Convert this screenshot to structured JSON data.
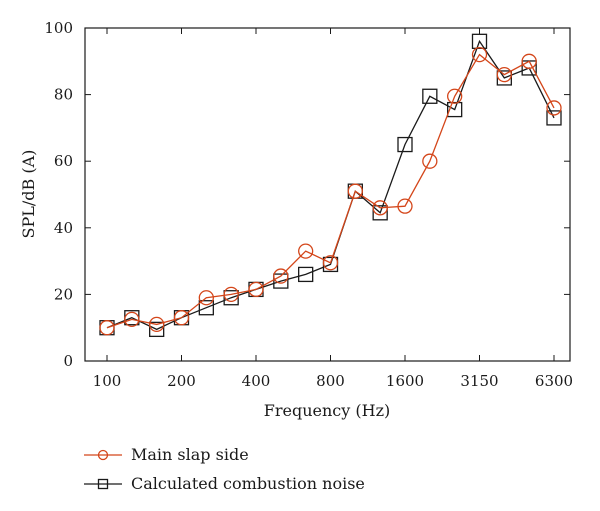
{
  "chart_data": {
    "type": "line",
    "xlabel": "Frequency (Hz)",
    "ylabel": "SPL/dB (A)",
    "ylim": [
      0,
      100
    ],
    "yticks": [
      0,
      20,
      40,
      60,
      80,
      100
    ],
    "categories": [
      "100",
      "125",
      "160",
      "200",
      "250",
      "315",
      "400",
      "500",
      "630",
      "800",
      "1000",
      "1250",
      "1600",
      "2000",
      "2500",
      "3150",
      "4000",
      "5000",
      "6300"
    ],
    "xtick_labels": [
      "100",
      "200",
      "400",
      "800",
      "1600",
      "3150",
      "6300"
    ],
    "xtick_indices": [
      0,
      3,
      6,
      9,
      12,
      15,
      18
    ],
    "grid": false,
    "legend_position": "bottom-left",
    "series": [
      {
        "name": "Main slap side",
        "color": "#d4461a",
        "marker": "circle",
        "values": [
          10,
          12.5,
          11,
          13,
          19,
          20,
          21.5,
          25.5,
          33,
          29.5,
          51,
          46,
          46.5,
          60,
          79.5,
          92,
          86,
          90,
          76
        ]
      },
      {
        "name": "Calculated combustion noise",
        "color": "#1a1a1a",
        "marker": "square",
        "values": [
          10,
          13,
          9.5,
          13,
          16,
          19,
          21.5,
          24,
          26,
          29,
          51,
          44.5,
          65,
          79.5,
          75.5,
          96,
          85,
          88,
          73
        ]
      }
    ]
  }
}
